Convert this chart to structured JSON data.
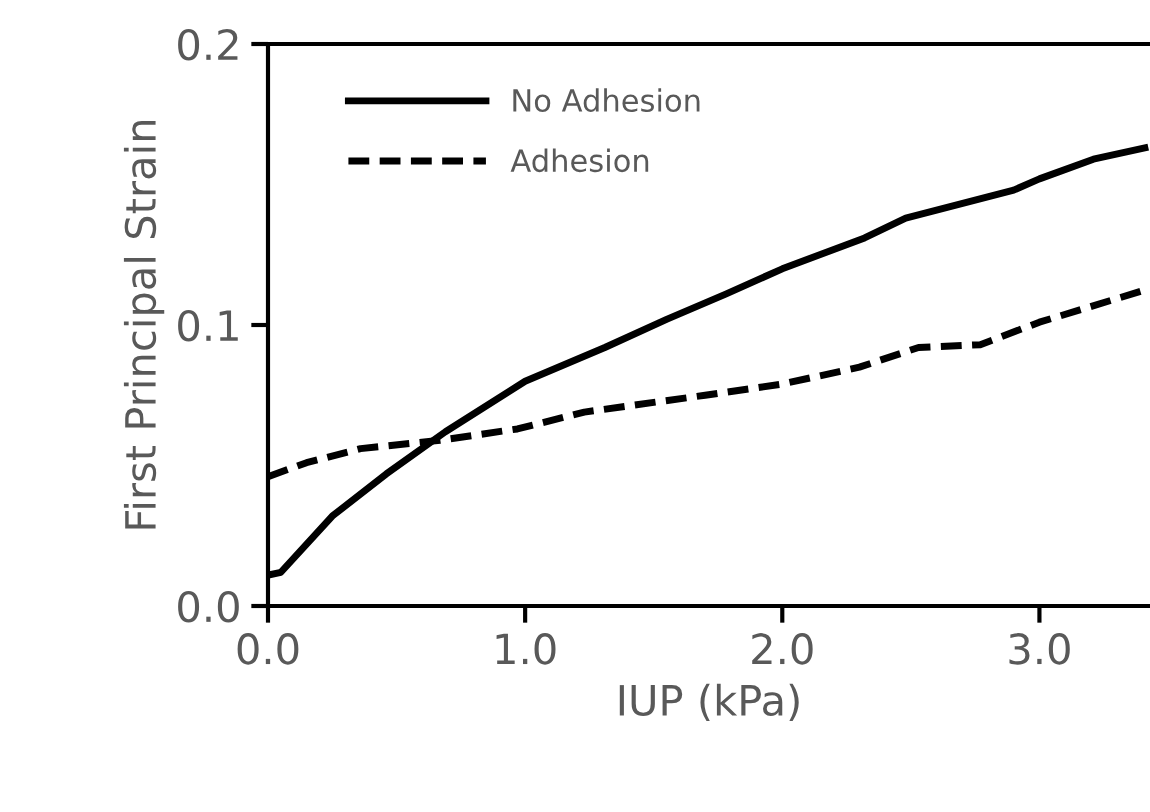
{
  "chart_data": {
    "type": "line",
    "xlabel": "IUP (kPa)",
    "ylabel": "First Principal Strain",
    "xlim": [
      0,
      3.43
    ],
    "ylim": [
      0,
      0.2
    ],
    "xticks": [
      {
        "value": 0,
        "label": "0.0"
      },
      {
        "value": 1,
        "label": "1.0"
      },
      {
        "value": 2,
        "label": "2.0"
      },
      {
        "value": 3,
        "label": "3.0"
      }
    ],
    "yticks": [
      {
        "value": 0,
        "label": "0.0"
      },
      {
        "value": 0.1,
        "label": "0.1"
      },
      {
        "value": 0.2,
        "label": "0.2"
      }
    ],
    "grid": false,
    "legend": "top left",
    "marker": "none",
    "series": [
      {
        "name": "No Adhesion",
        "color": "#000000",
        "line_style": "solid",
        "x": [
          0,
          0.05,
          0.25,
          0.46,
          0.69,
          1.0,
          1.31,
          1.55,
          1.78,
          2.0,
          2.32,
          2.48,
          2.9,
          3.0,
          3.21,
          3.41
        ],
        "values": [
          0.011,
          0.012,
          0.032,
          0.047,
          0.062,
          0.08,
          0.092,
          0.102,
          0.111,
          0.12,
          0.131,
          0.138,
          0.148,
          0.152,
          0.159,
          0.163
        ]
      },
      {
        "name": "Adhesion",
        "color": "#000000",
        "line_style": "dashed",
        "x": [
          0,
          0.15,
          0.36,
          0.67,
          0.97,
          1.23,
          1.7,
          2.0,
          2.3,
          2.53,
          2.77,
          3.0,
          3.43
        ],
        "values": [
          0.046,
          0.051,
          0.056,
          0.059,
          0.063,
          0.069,
          0.075,
          0.079,
          0.085,
          0.092,
          0.093,
          0.101,
          0.113
        ]
      }
    ]
  }
}
